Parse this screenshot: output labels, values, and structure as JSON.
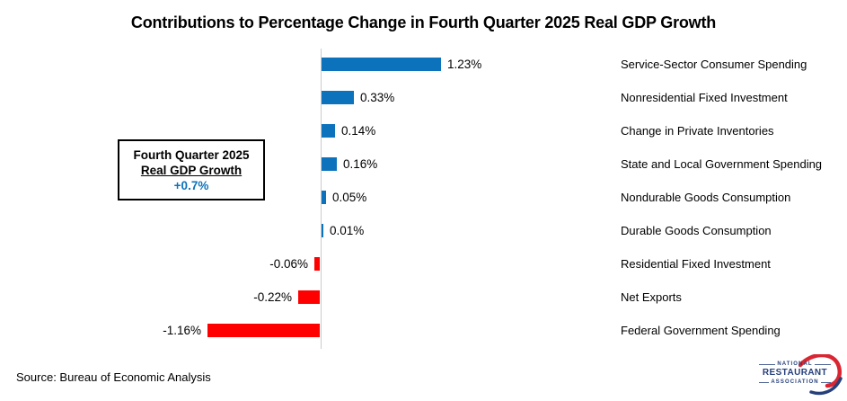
{
  "title": "Contributions to Percentage Change in Fourth Quarter 2025 Real GDP Growth",
  "chart_data": {
    "type": "bar",
    "orientation": "horizontal",
    "title": "Contributions to Percentage Change in Fourth Quarter 2025 Real GDP Growth",
    "categories": [
      "Service-Sector Consumer Spending",
      "Nonresidential Fixed Investment",
      "Change in Private Inventories",
      "State and Local Government Spending",
      "Nondurable Goods Consumption",
      "Durable Goods Consumption",
      "Residential Fixed Investment",
      "Net Exports",
      "Federal Government Spending"
    ],
    "values": [
      1.23,
      0.33,
      0.14,
      0.16,
      0.05,
      0.01,
      -0.06,
      -0.22,
      -1.16
    ],
    "value_labels": [
      "1.23%",
      "0.33%",
      "0.14%",
      "0.16%",
      "0.05%",
      "0.01%",
      "-0.06%",
      "-0.22%",
      "-1.16%"
    ],
    "positive_color": "#0C72BC",
    "negative_color": "#FF0000",
    "axis_color": "#CBCBCB",
    "xlim": [
      -1.3,
      1.4
    ],
    "grid": false,
    "legend": "none",
    "value_label_position": "outside-end",
    "category_label_position": "right-column"
  },
  "annotation_box": {
    "line1": "Fourth Quarter 2025",
    "line2": "Real GDP Growth",
    "value": "+0.7%",
    "value_color": "#0C72BC"
  },
  "source": "Source: Bureau of Economic Analysis",
  "logo": {
    "line1": "NATIONAL",
    "line2": "RESTAURANT",
    "line3": "ASSOCIATION",
    "text_color": "#26407C",
    "swoosh_red": "#D92632",
    "swoosh_blue": "#26407C"
  }
}
